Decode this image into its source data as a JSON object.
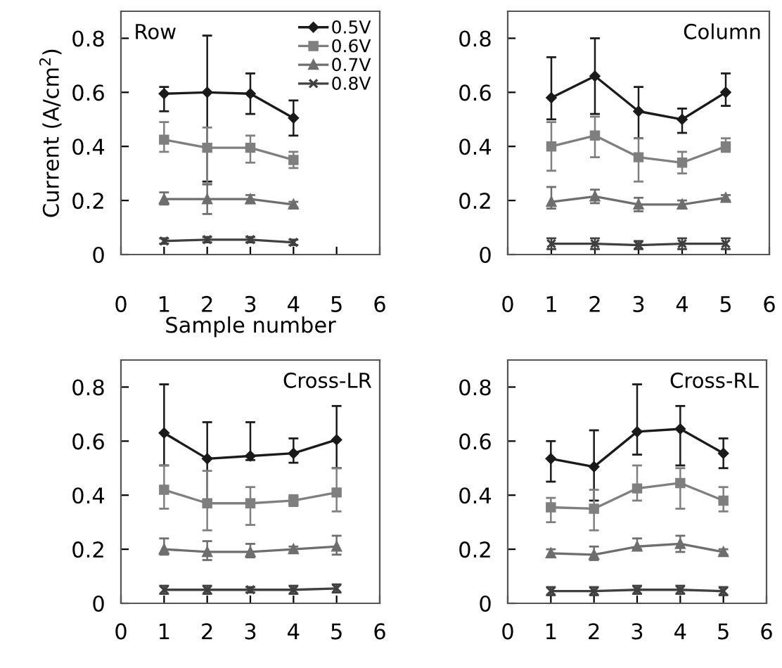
{
  "chart_data": [
    {
      "type": "line",
      "title": "Row",
      "xlabel": "Sample number",
      "ylabel": "Current (A/cm$^{2}$)",
      "x": [
        1,
        2,
        3,
        4
      ],
      "xlim": [
        0,
        6
      ],
      "xticks": [
        0,
        1,
        2,
        3,
        4,
        5,
        6
      ],
      "ylim": [
        0,
        0.9
      ],
      "yticks": [
        0,
        0.2,
        0.4,
        0.6,
        0.8
      ],
      "legend": "top right",
      "grid": false,
      "series": [
        {
          "name": "0.5V",
          "color": "#1a1a1a",
          "marker": "diamond",
          "values": [
            0.595,
            0.6,
            0.595,
            0.505
          ],
          "errors": [
            [
              0.53,
              0.62
            ],
            [
              0.27,
              0.81
            ],
            [
              0.52,
              0.67
            ],
            [
              0.44,
              0.57
            ]
          ]
        },
        {
          "name": "0.6V",
          "color": "#7f7f7f",
          "marker": "square",
          "values": [
            0.425,
            0.395,
            0.395,
            0.35
          ],
          "errors": [
            [
              0.38,
              0.49
            ],
            [
              0.26,
              0.47
            ],
            [
              0.34,
              0.44
            ],
            [
              0.32,
              0.38
            ]
          ]
        },
        {
          "name": "0.7V",
          "color": "#6e6e6e",
          "marker": "triangle",
          "values": [
            0.205,
            0.205,
            0.205,
            0.185
          ],
          "errors": [
            [
              0.185,
              0.23
            ],
            [
              0.15,
              0.26
            ],
            [
              0.19,
              0.22
            ],
            [
              0.175,
              0.195
            ]
          ]
        },
        {
          "name": "0.8V",
          "color": "#404040",
          "marker": "cross",
          "values": [
            0.05,
            0.055,
            0.055,
            0.045
          ],
          "errors": [
            [
              0.04,
              0.06
            ],
            [
              0.045,
              0.065
            ],
            [
              0.045,
              0.065
            ],
            [
              0.035,
              0.055
            ]
          ]
        }
      ]
    },
    {
      "type": "line",
      "title": "Column",
      "x": [
        1,
        2,
        3,
        4,
        5
      ],
      "xlim": [
        0,
        6
      ],
      "xticks": [
        0,
        1,
        2,
        3,
        4,
        5,
        6
      ],
      "ylim": [
        0,
        0.9
      ],
      "yticks": [
        0,
        0.2,
        0.4,
        0.6,
        0.8
      ],
      "grid": false,
      "series": [
        {
          "color": "#1a1a1a",
          "marker": "diamond",
          "values": [
            0.58,
            0.66,
            0.53,
            0.5,
            0.6
          ],
          "errors": [
            [
              0.5,
              0.73
            ],
            [
              0.52,
              0.8
            ],
            [
              0.43,
              0.62
            ],
            [
              0.45,
              0.54
            ],
            [
              0.55,
              0.67
            ]
          ]
        },
        {
          "color": "#7f7f7f",
          "marker": "square",
          "values": [
            0.4,
            0.44,
            0.36,
            0.34,
            0.4
          ],
          "errors": [
            [
              0.31,
              0.49
            ],
            [
              0.36,
              0.51
            ],
            [
              0.27,
              0.43
            ],
            [
              0.3,
              0.38
            ],
            [
              0.38,
              0.43
            ]
          ]
        },
        {
          "color": "#6e6e6e",
          "marker": "triangle",
          "values": [
            0.195,
            0.215,
            0.185,
            0.185,
            0.21
          ],
          "errors": [
            [
              0.17,
              0.25
            ],
            [
              0.19,
              0.24
            ],
            [
              0.16,
              0.21
            ],
            [
              0.17,
              0.2
            ],
            [
              0.2,
              0.22
            ]
          ]
        },
        {
          "color": "#404040",
          "marker": "cross",
          "values": [
            0.04,
            0.04,
            0.035,
            0.04,
            0.04
          ],
          "errors": [
            [
              0.02,
              0.06
            ],
            [
              0.02,
              0.06
            ],
            [
              0.02,
              0.05
            ],
            [
              0.02,
              0.06
            ],
            [
              0.02,
              0.06
            ]
          ]
        }
      ]
    },
    {
      "type": "line",
      "title": "Cross-LR",
      "x": [
        1,
        2,
        3,
        4,
        5
      ],
      "xlim": [
        0,
        6
      ],
      "xticks": [
        0,
        1,
        2,
        3,
        4,
        5,
        6
      ],
      "ylim": [
        0,
        0.9
      ],
      "yticks": [
        0,
        0.2,
        0.4,
        0.6,
        0.8
      ],
      "grid": false,
      "series": [
        {
          "color": "#1a1a1a",
          "marker": "diamond",
          "values": [
            0.63,
            0.535,
            0.545,
            0.555,
            0.605
          ],
          "errors": [
            [
              0.51,
              0.81
            ],
            [
              0.38,
              0.67
            ],
            [
              0.53,
              0.67
            ],
            [
              0.52,
              0.61
            ],
            [
              0.5,
              0.73
            ]
          ]
        },
        {
          "color": "#7f7f7f",
          "marker": "square",
          "values": [
            0.42,
            0.37,
            0.37,
            0.38,
            0.41
          ],
          "errors": [
            [
              0.35,
              0.51
            ],
            [
              0.27,
              0.49
            ],
            [
              0.29,
              0.43
            ],
            [
              0.36,
              0.4
            ],
            [
              0.34,
              0.5
            ]
          ]
        },
        {
          "color": "#6e6e6e",
          "marker": "triangle",
          "values": [
            0.2,
            0.19,
            0.19,
            0.2,
            0.21
          ],
          "errors": [
            [
              0.18,
              0.24
            ],
            [
              0.16,
              0.23
            ],
            [
              0.17,
              0.22
            ],
            [
              0.19,
              0.21
            ],
            [
              0.18,
              0.25
            ]
          ]
        },
        {
          "color": "#404040",
          "marker": "cross",
          "values": [
            0.05,
            0.05,
            0.05,
            0.05,
            0.055
          ],
          "errors": [
            [
              0.035,
              0.065
            ],
            [
              0.035,
              0.065
            ],
            [
              0.04,
              0.06
            ],
            [
              0.035,
              0.065
            ],
            [
              0.04,
              0.07
            ]
          ]
        }
      ]
    },
    {
      "type": "line",
      "title": "Cross-RL",
      "x": [
        1,
        2,
        3,
        4,
        5
      ],
      "xlim": [
        0,
        6
      ],
      "xticks": [
        0,
        1,
        2,
        3,
        4,
        5,
        6
      ],
      "ylim": [
        0,
        0.9
      ],
      "yticks": [
        0,
        0.2,
        0.4,
        0.6,
        0.8
      ],
      "grid": false,
      "series": [
        {
          "color": "#1a1a1a",
          "marker": "diamond",
          "values": [
            0.535,
            0.505,
            0.635,
            0.645,
            0.555
          ],
          "errors": [
            [
              0.45,
              0.6
            ],
            [
              0.38,
              0.64
            ],
            [
              0.55,
              0.81
            ],
            [
              0.51,
              0.73
            ],
            [
              0.5,
              0.61
            ]
          ]
        },
        {
          "color": "#7f7f7f",
          "marker": "square",
          "values": [
            0.355,
            0.35,
            0.425,
            0.445,
            0.38
          ],
          "errors": [
            [
              0.3,
              0.39
            ],
            [
              0.27,
              0.42
            ],
            [
              0.38,
              0.51
            ],
            [
              0.35,
              0.5
            ],
            [
              0.34,
              0.43
            ]
          ]
        },
        {
          "color": "#6e6e6e",
          "marker": "triangle",
          "values": [
            0.185,
            0.18,
            0.21,
            0.22,
            0.19
          ],
          "errors": [
            [
              0.17,
              0.2
            ],
            [
              0.16,
              0.21
            ],
            [
              0.2,
              0.24
            ],
            [
              0.19,
              0.25
            ],
            [
              0.18,
              0.2
            ]
          ]
        },
        {
          "color": "#404040",
          "marker": "cross",
          "values": [
            0.045,
            0.045,
            0.05,
            0.05,
            0.045
          ],
          "errors": [
            [
              0.03,
              0.06
            ],
            [
              0.03,
              0.06
            ],
            [
              0.035,
              0.065
            ],
            [
              0.035,
              0.065
            ],
            [
              0.03,
              0.06
            ]
          ]
        }
      ]
    }
  ]
}
